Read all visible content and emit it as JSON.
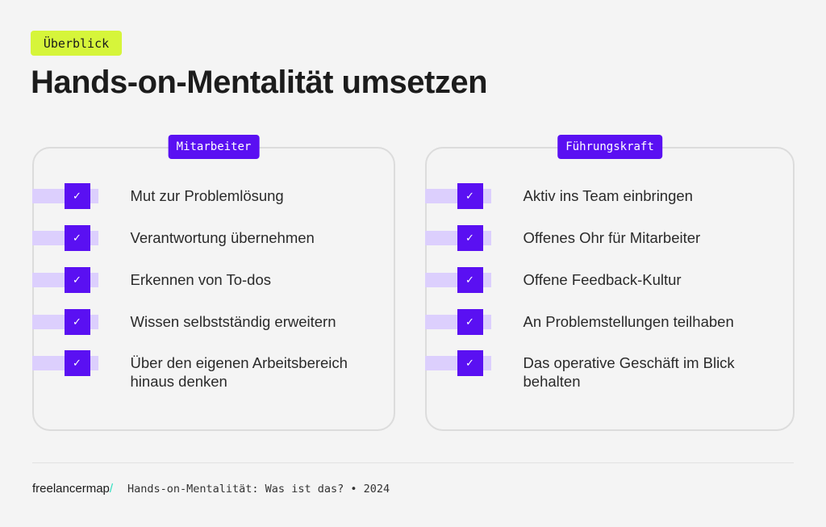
{
  "tag": "Überblick",
  "title": "Hands-on-Mentalität umsetzen",
  "colors": {
    "accent": "#5a10f2",
    "lime": "#d6f53a",
    "lavender": "#dccffd",
    "background": "#f4f4f4"
  },
  "columns": [
    {
      "label": "Mitarbeiter",
      "items": [
        "Mut zur Problemlösung",
        "Verantwortung übernehmen",
        "Erkennen von To-dos",
        "Wissen selbstständig erweitern",
        "Über den eigenen Arbeitsbereich hinaus denken"
      ]
    },
    {
      "label": "Führungskraft",
      "items": [
        "Aktiv ins Team einbringen",
        "Offenes Ohr für Mitarbeiter",
        "Offene Feedback-Kultur",
        "An Problemstellungen teilhaben",
        "Das operative Geschäft im Blick behalten"
      ]
    }
  ],
  "check_glyph": "✓",
  "footer": {
    "logo": "freelancermap",
    "logo_slash": "/",
    "text": "Hands-on-Mentalität: Was ist das? • 2024"
  }
}
